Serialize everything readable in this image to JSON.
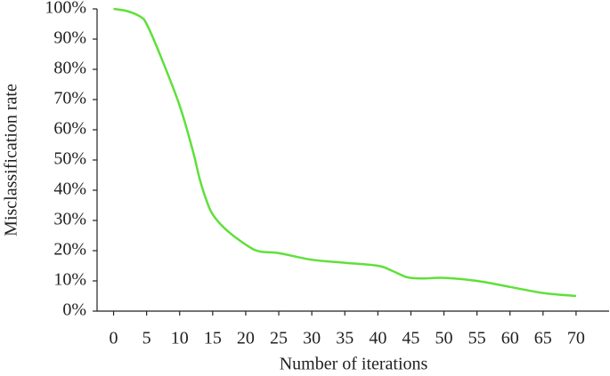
{
  "chart_data": {
    "type": "line",
    "xlabel": "Number of iterations",
    "ylabel": "Misclassification rate",
    "series": [
      {
        "color": "#5fe03a",
        "x": [
          0,
          2,
          4,
          5,
          7,
          10,
          12,
          13,
          14,
          15,
          17,
          20,
          22,
          25,
          30,
          35,
          40,
          42,
          44,
          45,
          47,
          50,
          55,
          60,
          65,
          70
        ],
        "values": [
          100,
          99.3,
          97.5,
          95,
          85,
          68,
          53,
          44,
          37,
          32,
          27,
          22,
          19.8,
          19.2,
          17,
          16,
          15,
          13.5,
          11.5,
          11,
          10.8,
          11,
          10,
          8,
          6,
          5
        ]
      }
    ],
    "xlim": [
      -2.5,
      75
    ],
    "xticks": [
      0,
      5,
      10,
      15,
      20,
      25,
      30,
      35,
      40,
      45,
      50,
      55,
      60,
      65,
      70
    ],
    "ylim": [
      0,
      100
    ],
    "yticks": [
      {
        "value": 0,
        "label": "0%"
      },
      {
        "value": 10,
        "label": "10%"
      },
      {
        "value": 20,
        "label": "20%"
      },
      {
        "value": 30,
        "label": "30%"
      },
      {
        "value": 40,
        "label": "40%"
      },
      {
        "value": 50,
        "label": "50%"
      },
      {
        "value": 60,
        "label": "60%"
      },
      {
        "value": 70,
        "label": "70%"
      },
      {
        "value": 80,
        "label": "80%"
      },
      {
        "value": 90,
        "label": "90%"
      },
      {
        "value": 100,
        "label": "100%"
      }
    ]
  }
}
